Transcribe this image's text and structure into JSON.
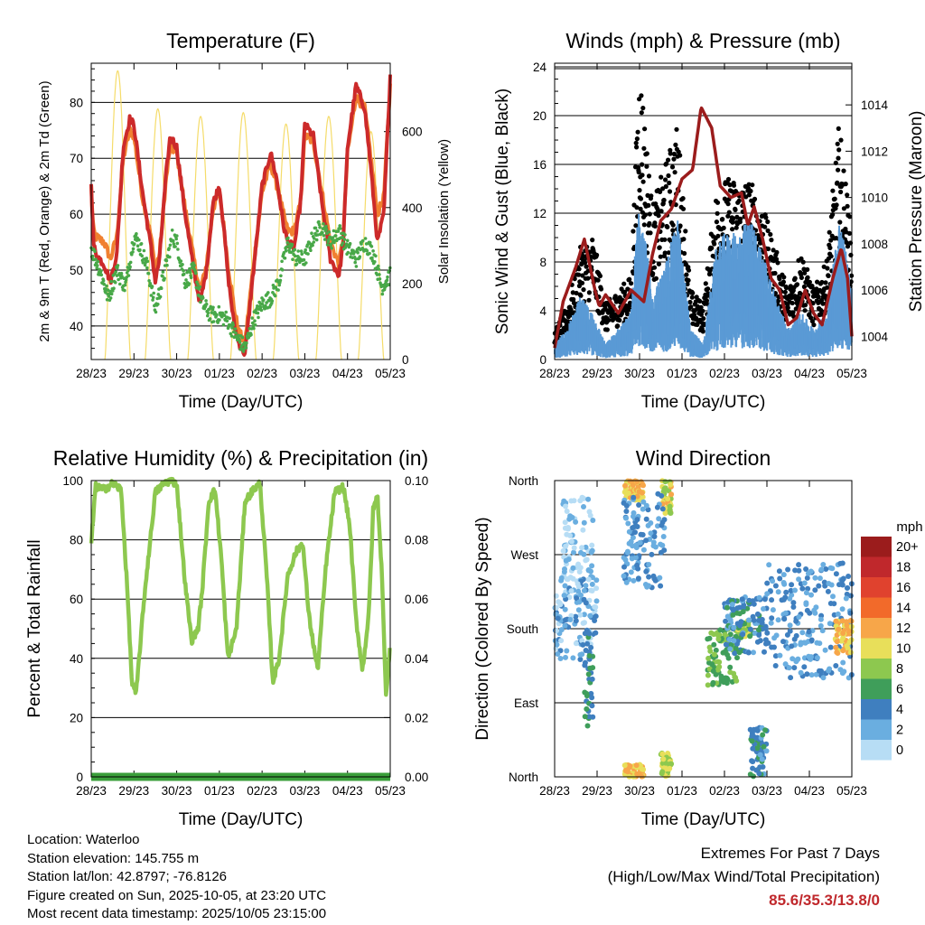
{
  "chart_data": [
    {
      "type": "line",
      "title": "Temperature (F)",
      "xlabel": "Time (Day/UTC)",
      "ylabel": "2m & 9m T (Red, Orange) & 2m Td (Green)",
      "y2label": "Solar Insolation (Yellow)",
      "x_ticks": [
        "28/23",
        "29/23",
        "30/23",
        "01/23",
        "02/23",
        "03/23",
        "04/23",
        "05/23"
      ],
      "ylim": [
        34,
        87
      ],
      "y_ticks": [
        40,
        50,
        60,
        70,
        80
      ],
      "y2lim": [
        0,
        780
      ],
      "y2_ticks": [
        0,
        200,
        400,
        600
      ],
      "colors": {
        "t2m": "#cc2a2a",
        "t9m": "#f08030",
        "td": "#48a848",
        "solar": "#f5dc6a"
      },
      "series": [
        {
          "name": "2m T",
          "x": [
            0,
            0.05,
            0.1,
            0.3,
            0.45,
            0.6,
            0.75,
            0.9,
            1.0,
            1.2,
            1.4,
            1.5,
            1.6,
            1.75,
            1.85,
            2.0,
            2.2,
            2.4,
            2.55,
            2.7,
            2.85,
            3.0,
            3.1,
            3.2,
            3.35,
            3.45,
            3.6,
            3.8,
            4.0,
            4.2,
            4.35,
            4.5,
            4.6,
            4.75,
            4.9,
            5.0,
            5.2,
            5.4,
            5.6,
            5.8,
            5.9,
            6.0,
            6.2,
            6.4,
            6.55,
            6.7,
            6.85,
            7.0
          ],
          "values": [
            66,
            55,
            53,
            51,
            48,
            53,
            72,
            77,
            76,
            64,
            54,
            48,
            52,
            67,
            74,
            72,
            60,
            50,
            44,
            50,
            62,
            65,
            58,
            49,
            40,
            37,
            35,
            50,
            65,
            71,
            66,
            58,
            55,
            54,
            62,
            76,
            74,
            62,
            52,
            49,
            55,
            72,
            83,
            79,
            68,
            55,
            60,
            85
          ]
        },
        {
          "name": "9m T",
          "x": [
            0,
            0.05,
            0.1,
            0.3,
            0.45,
            0.6,
            0.75,
            0.9,
            1.0,
            1.2,
            1.4,
            1.5,
            1.6,
            1.75,
            1.85,
            2.0,
            2.2,
            2.4,
            2.55,
            2.7,
            2.85,
            3.0,
            3.1,
            3.2,
            3.35,
            3.45,
            3.6,
            3.8,
            4.0,
            4.2,
            4.35,
            4.5,
            4.6,
            4.75,
            4.9,
            5.0,
            5.2,
            5.4,
            5.6,
            5.8,
            5.9,
            6.0,
            6.2,
            6.4,
            6.55,
            6.7,
            6.85,
            7.0
          ],
          "values": [
            65,
            57,
            56,
            55,
            52,
            56,
            70,
            75,
            74,
            63,
            56,
            50,
            53,
            66,
            72,
            71,
            61,
            52,
            46,
            51,
            61,
            64,
            58,
            51,
            43,
            39,
            37,
            51,
            64,
            69,
            65,
            60,
            57,
            57,
            62,
            74,
            73,
            64,
            55,
            51,
            56,
            71,
            81,
            79,
            70,
            60,
            63,
            83
          ]
        },
        {
          "name": "2m Td",
          "x": [
            0,
            0.2,
            0.4,
            0.6,
            0.8,
            1.0,
            1.1,
            1.3,
            1.5,
            1.7,
            1.9,
            2.0,
            2.2,
            2.4,
            2.6,
            2.8,
            3.0,
            3.2,
            3.4,
            3.6,
            3.8,
            4.0,
            4.2,
            4.4,
            4.6,
            4.8,
            5.0,
            5.2,
            5.4,
            5.6,
            5.8,
            6.0,
            6.2,
            6.4,
            6.6,
            6.8,
            7.0
          ],
          "values": [
            54,
            50,
            45,
            50,
            47,
            56,
            55,
            51,
            43,
            49,
            56,
            55,
            48,
            50,
            44,
            42,
            42,
            41,
            38,
            36,
            41,
            44,
            45,
            48,
            55,
            52,
            52,
            56,
            58,
            55,
            57,
            54,
            52,
            55,
            53,
            47,
            49
          ]
        },
        {
          "name": "Solar Insolation",
          "axis": "y2",
          "peak_x": [
            0.62,
            1.56,
            2.56,
            3.56,
            4.56,
            5.56,
            6.55
          ],
          "peak_values": [
            760,
            660,
            640,
            650,
            620,
            640,
            600
          ]
        }
      ]
    },
    {
      "type": "scatter",
      "title": "Winds (mph) & Pressure (mb)",
      "xlabel": "Time (Day/UTC)",
      "ylabel": "Sonic Wind & Gust (Blue, Black)",
      "y2label": "Station Pressure (Maroon)",
      "x_ticks": [
        "28/23",
        "29/23",
        "30/23",
        "01/23",
        "02/23",
        "03/23",
        "04/23",
        "05/23"
      ],
      "ylim": [
        0,
        24.3
      ],
      "y_ticks": [
        0,
        4,
        8,
        12,
        16,
        20,
        24
      ],
      "y2lim": [
        1003,
        1015.8
      ],
      "y2_ticks": [
        1004,
        1006,
        1008,
        1010,
        1012,
        1014
      ],
      "colors": {
        "wind": "#5a9ad5",
        "gust": "#000000",
        "pressure": "#9b1c1c"
      },
      "series": [
        {
          "name": "Sonic Wind",
          "x": [
            0,
            0.3,
            0.6,
            0.9,
            1.2,
            1.5,
            1.8,
            2.0,
            2.3,
            2.6,
            2.9,
            3.2,
            3.5,
            3.8,
            4.0,
            4.3,
            4.6,
            4.9,
            5.2,
            5.5,
            5.8,
            6.1,
            6.4,
            6.7,
            7.0
          ],
          "values": [
            1,
            2,
            4,
            3,
            1,
            2,
            3,
            11,
            4,
            6,
            9,
            2,
            1,
            7,
            8,
            8,
            9,
            7,
            4,
            2,
            3,
            2,
            3,
            9,
            5
          ]
        },
        {
          "name": "Gust",
          "x": [
            0,
            0.3,
            0.6,
            0.9,
            1.2,
            1.5,
            1.8,
            2.0,
            2.3,
            2.6,
            2.9,
            3.2,
            3.5,
            3.8,
            4.0,
            4.3,
            4.6,
            4.9,
            5.2,
            5.5,
            5.8,
            6.1,
            6.4,
            6.7,
            7.0
          ],
          "values": [
            2,
            4,
            8,
            9,
            4,
            5,
            6,
            22,
            11,
            14,
            17,
            5,
            4,
            12,
            13,
            13,
            13,
            11,
            8,
            5,
            8,
            5,
            7,
            17,
            9
          ]
        },
        {
          "name": "Station Pressure",
          "axis": "y2",
          "x": [
            0,
            0.2,
            0.5,
            0.7,
            0.95,
            1.05,
            1.2,
            1.5,
            1.8,
            2.1,
            2.3,
            2.5,
            2.75,
            3.0,
            3.25,
            3.45,
            3.7,
            3.9,
            4.15,
            4.4,
            4.55,
            4.7,
            4.9,
            5.1,
            5.3,
            5.5,
            5.7,
            5.9,
            6.1,
            6.3,
            6.55,
            6.75,
            6.9,
            7.0
          ],
          "values": [
            1003.5,
            1005.5,
            1007,
            1008.2,
            1006,
            1005.3,
            1005.8,
            1005,
            1006,
            1005.5,
            1007.5,
            1009,
            1009.5,
            1010.8,
            1011.2,
            1013.9,
            1013,
            1010.5,
            1010,
            1010.2,
            1008.8,
            1009.6,
            1008.2,
            1006.5,
            1006,
            1004.5,
            1004.8,
            1006,
            1005,
            1004.5,
            1006.5,
            1007.8,
            1006.5,
            1004
          ]
        }
      ]
    },
    {
      "type": "line",
      "title": "Relative Humidity (%) & Precipitation (in)",
      "xlabel": "Time (Day/UTC)",
      "ylabel": "Percent & Total Rainfall",
      "x_ticks": [
        "28/23",
        "29/23",
        "30/23",
        "01/23",
        "02/23",
        "03/23",
        "04/23",
        "05/23"
      ],
      "ylim": [
        0,
        100
      ],
      "y_ticks": [
        0,
        20,
        40,
        60,
        80,
        100
      ],
      "y2lim": [
        0,
        0.1
      ],
      "y2_ticks": [
        "0.00",
        "0.02",
        "0.04",
        "0.06",
        "0.08",
        "0.10"
      ],
      "colors": {
        "rh": "#8dc84f",
        "precip": "#3a9e3a"
      },
      "series": [
        {
          "name": "Relative Humidity",
          "x": [
            0,
            0.1,
            0.3,
            0.5,
            0.7,
            0.85,
            0.95,
            1.05,
            1.25,
            1.5,
            1.7,
            1.85,
            2.0,
            2.2,
            2.35,
            2.5,
            2.6,
            2.75,
            2.9,
            3.05,
            3.2,
            3.4,
            3.6,
            3.8,
            3.95,
            4.1,
            4.25,
            4.4,
            4.6,
            4.8,
            4.95,
            5.1,
            5.3,
            5.5,
            5.7,
            5.9,
            6.05,
            6.2,
            6.35,
            6.5,
            6.6,
            6.7,
            6.8,
            6.9,
            7.0
          ],
          "values": [
            78,
            98,
            97,
            99,
            97,
            62,
            32,
            28,
            62,
            96,
            99,
            100,
            99,
            65,
            46,
            50,
            63,
            93,
            97,
            73,
            40,
            50,
            93,
            97,
            99,
            70,
            32,
            40,
            68,
            76,
            79,
            54,
            36,
            72,
            96,
            98,
            85,
            53,
            36,
            55,
            90,
            95,
            70,
            28,
            44
          ]
        },
        {
          "name": "Total Precipitation",
          "axis": "y2",
          "x": [
            0,
            7
          ],
          "values": [
            0.0,
            0.0
          ]
        }
      ]
    },
    {
      "type": "scatter",
      "title": "Wind Direction",
      "xlabel": "Time (Day/UTC)",
      "ylabel": "Direction (Colored By Speed)",
      "x_ticks": [
        "28/23",
        "29/23",
        "30/23",
        "01/23",
        "02/23",
        "03/23",
        "04/23",
        "05/23"
      ],
      "y_labels": [
        "North",
        "East",
        "South",
        "West",
        "North"
      ],
      "ylim": [
        0,
        360
      ],
      "legend_title": "mph",
      "legend_labels": [
        "20+",
        "18",
        "16",
        "14",
        "12",
        "10",
        "8",
        "6",
        "4",
        "2",
        "0"
      ],
      "legend_colors": [
        "#9b1c1c",
        "#c0282c",
        "#e0422e",
        "#f26a2a",
        "#f7a649",
        "#e8df5a",
        "#8dc84f",
        "#3f9e5a",
        "#3f7fbf",
        "#6aaee0",
        "#b7ddf5"
      ],
      "clusters": [
        {
          "x_range": [
            0,
            1.0
          ],
          "dir_range": [
            140,
            250
          ],
          "speed": 2
        },
        {
          "x_range": [
            0.2,
            0.9
          ],
          "dir_range": [
            220,
            340
          ],
          "speed": 1
        },
        {
          "x_range": [
            0.7,
            0.9
          ],
          "dir_range": [
            60,
            180
          ],
          "speed": 5
        },
        {
          "x_range": [
            1.65,
            2.1
          ],
          "dir_range": [
            335,
            360
          ],
          "speed": 11
        },
        {
          "x_range": [
            1.65,
            2.1
          ],
          "dir_range": [
            0,
            15
          ],
          "speed": 11
        },
        {
          "x_range": [
            2.5,
            2.75
          ],
          "dir_range": [
            320,
            360
          ],
          "speed": 10
        },
        {
          "x_range": [
            2.5,
            2.75
          ],
          "dir_range": [
            0,
            30
          ],
          "speed": 9
        },
        {
          "x_range": [
            1.6,
            2.6
          ],
          "dir_range": [
            230,
            345
          ],
          "speed": 3
        },
        {
          "x_range": [
            3.6,
            4.3
          ],
          "dir_range": [
            110,
            180
          ],
          "speed": 7
        },
        {
          "x_range": [
            4.3,
            4.6
          ],
          "dir_range": [
            170,
            190
          ],
          "speed": 8
        },
        {
          "x_range": [
            4.0,
            5.0
          ],
          "dir_range": [
            150,
            220
          ],
          "speed": 4
        },
        {
          "x_range": [
            4.6,
            5.0
          ],
          "dir_range": [
            0,
            60
          ],
          "speed": 4
        },
        {
          "x_range": [
            5.0,
            7.0
          ],
          "dir_range": [
            120,
            260
          ],
          "speed": 3
        },
        {
          "x_range": [
            6.6,
            7.0
          ],
          "dir_range": [
            150,
            190
          ],
          "speed": 11
        }
      ]
    }
  ],
  "info": {
    "location": "Location: Waterloo",
    "elevation": "Station elevation: 145.755 m",
    "latlon": "Station lat/lon: 42.8797; -76.8126",
    "created": "Figure created on Sun, 2025-10-05, at 23:20 UTC",
    "timestamp": "Most recent data timestamp: 2025/10/05 23:15:00"
  },
  "extremes": {
    "line1": "Extremes For Past 7 Days",
    "line2": "(High/Low/Max Wind/Total Precipitation)",
    "values": "85.6/35.3/13.8/0"
  }
}
